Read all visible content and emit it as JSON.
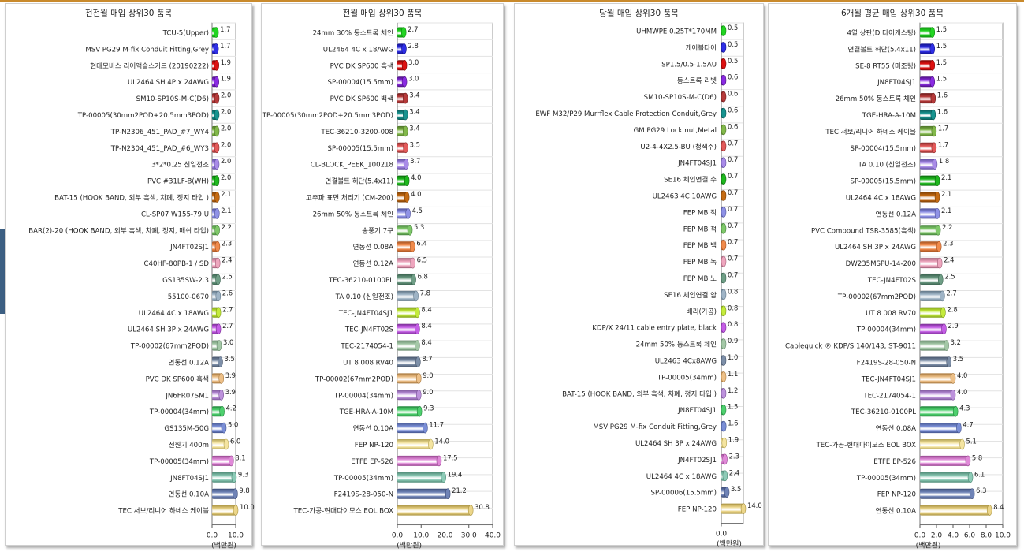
{
  "unit_label": "(백만원)",
  "chart_data": [
    {
      "type": "bar",
      "title": "전전월 매입 상위30 품목",
      "xlabel": "(백만원)",
      "xlim": [
        0,
        10
      ],
      "xticks": [
        "0.0",
        "10.0"
      ],
      "categories": [
        "TCU-5(Upper)",
        "MSV PG29 M-fix Conduit Fitting,Grey",
        "현대모비스 리어액슬스키드 (20190222)",
        "UL2464 SH 4P x 24AWG",
        "SM10-SP10S-M-C(D6)",
        "TP-00005(30mm2POD+20.5mm3POD)",
        "TP-N2306_451_PAD_#7_WY4",
        "TP-N2304_451_PAD_#6_WY3",
        "3*2*0.25 신일전조",
        "PVC #31LF-B(WH)",
        "BAT-15 (HOOK BAND, 외부 흑색, 차폐, 정지 타입 )",
        "CL-SP07 W155-79 U",
        "BAR(2)-20 (HOOK BAND, 외부 흑색, 차폐, 정지, 매쉬 타입)",
        "JN4FT02SJ1",
        "C40HF-80PB-1 / SD",
        "GS135SW-2.3",
        "55100-0670",
        "UL2464 4C x 18AWG",
        "UL2464 SH 3P x 24AWG",
        "TP-00002(67mm2POD)",
        "연동선 0.12A",
        "PVC DK SP600 흑색",
        "JN6FR07SM1",
        "TP-00004(34mm)",
        "GS135M-50G",
        "전원기 400m",
        "TP-00005(34mm)",
        "JN8FT04SJ1",
        "연동선 0.10A",
        "TEC 서보/리니어 하네스 케이블"
      ],
      "values": [
        1.7,
        1.7,
        1.9,
        1.9,
        2.0,
        2.0,
        2.0,
        2.0,
        2.0,
        2.0,
        2.1,
        2.1,
        2.2,
        2.3,
        2.4,
        2.5,
        2.6,
        2.7,
        2.7,
        3.0,
        3.5,
        3.9,
        3.9,
        4.2,
        5.0,
        6.0,
        8.1,
        9.3,
        9.8,
        10.0
      ],
      "value_labels": [
        "1.7",
        "1.7",
        "1.9",
        "1.9",
        "2.0",
        "2.0",
        "2.0",
        "2.0",
        "2.0",
        "2.0",
        "2.1",
        "2.1",
        "2.2",
        "2.3",
        "2.4",
        "2.5",
        "2.6",
        "2.7",
        "2.7",
        "3.0",
        "3.5",
        "3.9",
        "3.9",
        "4.2",
        "5.0",
        "6.0",
        "8.1",
        "9.3",
        "9.8",
        "10.0"
      ]
    },
    {
      "type": "bar",
      "title": "전월 매입 상위30 품목",
      "xlabel": "(백만원)",
      "xlim": [
        0,
        40
      ],
      "xticks": [
        "0.0",
        "10.0",
        "20.0",
        "30.0",
        "40.0"
      ],
      "categories": [
        "24mm 30% 동스트록 체인",
        "UL2464 4C x 18AWG",
        "PVC DK SP600 흑색",
        "SP-00004(15.5mm)",
        "PVC DK SP600 백색",
        "TP-00005(30mm2POD+20.5mm3POD)",
        "TEC-36210-3200-008",
        "SP-00005(15.5mm)",
        "CL-BLOCK_PEEK_100218",
        "연결볼트 허단(5.4x11)",
        "고주파 표면 처리기 (CM-200)",
        "26mm 50% 동스트록 체인",
        "송풍기 7구",
        "연동선 0.08A",
        "연동선 0.12A",
        "TEC-36210-0100PL",
        "TA 0.10 (신일전조)",
        "TEC-JN4FT04SJ1",
        "TEC-JN4FT02S",
        "TEC-2174054-1",
        "UT 8 008 RV40",
        "TP-00002(67mm2POD)",
        "TP-00004(34mm)",
        "TGE-HRA-A-10M",
        "연동선 0.10A",
        "FEP NP-120",
        "ETFE EP-526",
        "TP-00005(34mm)",
        "F2419S-28-050-N",
        "TEC-가공-현대다이모스 EOL BOX"
      ],
      "values": [
        2.7,
        2.8,
        3.0,
        3.0,
        3.4,
        3.4,
        3.4,
        3.5,
        3.7,
        4.0,
        4.0,
        4.5,
        5.3,
        6.4,
        6.5,
        6.8,
        7.8,
        8.4,
        8.4,
        8.4,
        8.7,
        9.0,
        9.0,
        9.3,
        11.7,
        14.0,
        17.5,
        19.4,
        21.2,
        30.8
      ],
      "value_labels": [
        "2.7",
        "2.8",
        "3.0",
        "3.0",
        "3.4",
        "3.4",
        "3.4",
        "3.5",
        "3.7",
        "4.0",
        "4.0",
        "4.5",
        "5.3",
        "6.4",
        "6.5",
        "6.8",
        "7.8",
        "8.4",
        "8.4",
        "8.4",
        "8.7",
        "9.0",
        "9.0",
        "9.3",
        "11.7",
        "14.0",
        "17.5",
        "19.4",
        "21.2",
        "30.8"
      ]
    },
    {
      "type": "bar",
      "title": "당월 매입 상위30 품목",
      "xlabel": "(백만원)",
      "xlim": [
        0,
        14
      ],
      "xticks": [
        "0.0"
      ],
      "categories": [
        "UHMWPE 0.25T*170MM",
        "케이블타이",
        "SP1.5/0.5-1.5AU",
        "동스트록 리벳",
        "SM10-SP10S-M-C(D6)",
        "EWF M32/P29 Murrflex Cable Protection Conduit,Grey",
        "GM PG29 Lock nut,Metal",
        "U2-4-4X2.5-BU (청색주)",
        "JN4FT04SJ1",
        "SE16 체인연결 수",
        "UL2463 4C 10AWG",
        "FEP MB 적",
        "FEP MB 적",
        "FEP MB 백",
        "FEP MB 녹",
        "FEP MB 노",
        "SE16 체인연결 암",
        "배리(가공)",
        "KDP/X 24/11 cable entry plate, black",
        "24mm 50% 동스트록 체인",
        "UL2463 4Cx8AWG",
        "TP-00005(34mm)",
        "BAT-15 (HOOK BAND, 외부 흑색, 차폐, 정지 타입 )",
        "JN8FT04SJ1",
        "MSV PG29 M-fix Conduit Fitting,Grey",
        "UL2464 SH 3P x 24AWG",
        "JN4FT02SJ1",
        "UL2464 4C x 18AWG",
        "SP-00006(15.5mm)",
        "FEP NP-120"
      ],
      "values": [
        0.5,
        0.5,
        0.5,
        0.6,
        0.6,
        0.6,
        0.6,
        0.7,
        0.7,
        0.7,
        0.7,
        0.7,
        0.7,
        0.7,
        0.7,
        0.7,
        0.8,
        0.8,
        0.8,
        0.9,
        1.0,
        1.1,
        1.2,
        1.5,
        1.6,
        1.9,
        2.3,
        2.4,
        3.5,
        14.0
      ],
      "value_labels": [
        "0.5",
        "0.5",
        "0.5",
        "0.6",
        "0.6",
        "0.6",
        "0.6",
        "0.7",
        "0.7",
        "0.7",
        "0.7",
        "0.7",
        "0.7",
        "0.7",
        "0.7",
        "0.7",
        "0.8",
        "0.8",
        "0.8",
        "0.9",
        "1.0",
        "1.1",
        "1.2",
        "1.5",
        "1.6",
        "1.9",
        "2.3",
        "2.4",
        "3.5",
        "14.0"
      ]
    },
    {
      "type": "bar",
      "title": "6개월 평균 매입 상위30 품목",
      "xlabel": "(백만원)",
      "xlim": [
        0,
        10
      ],
      "xticks": [
        "0.0",
        "2.0",
        "4.0",
        "6.0",
        "8.0",
        "10.0"
      ],
      "categories": [
        "4열 상판(D 다이캐스팅)",
        "연결볼트 허단(5.4x11)",
        "SE-8 RT55 (미조링)",
        "JN8FT04SJ1",
        "26mm 50% 동스트록 체인",
        "TGE-HRA-A-10M",
        "TEC 서보/리니어 하네스 케이블",
        "SP-00004(15.5mm)",
        "TA 0.10 (신일전조)",
        "SP-00005(15.5mm)",
        "UL2464 4C x 18AWG",
        "연동선 0.12A",
        "PVC Compound TSR-3585(흑색)",
        "UL2464 SH 3P x 24AWG",
        "DW235MSPU-14-200",
        "TEC-JN4FT02S",
        "TP-00002(67mm2POD)",
        "UT 8 008 RV70",
        "TP-00004(34mm)",
        "Cablequick ® KDP/S 140/143, ST-9011",
        "F2419S-28-050-N",
        "TEC-JN4FT04SJ1",
        "TEC-2174054-1",
        "TEC-36210-0100PL",
        "연동선 0.08A",
        "TEC-가공-현대다이모스 EOL BOX",
        "ETFE EP-526",
        "TP-00005(34mm)",
        "FEP NP-120",
        "연동선 0.10A"
      ],
      "values": [
        1.5,
        1.5,
        1.5,
        1.5,
        1.6,
        1.6,
        1.7,
        1.7,
        1.8,
        2.1,
        2.1,
        2.1,
        2.2,
        2.3,
        2.4,
        2.5,
        2.7,
        2.8,
        2.9,
        3.2,
        3.5,
        4.0,
        4.0,
        4.3,
        4.7,
        5.1,
        5.8,
        6.1,
        6.3,
        8.4
      ],
      "value_labels": [
        "1.5",
        "1.5",
        "1.5",
        "1.5",
        "1.6",
        "1.6",
        "1.7",
        "1.7",
        "1.8",
        "2.1",
        "2.1",
        "2.1",
        "2.2",
        "2.3",
        "2.4",
        "2.5",
        "2.7",
        "2.8",
        "2.9",
        "3.2",
        "3.5",
        "4.0",
        "4.0",
        "4.3",
        "4.7",
        "5.1",
        "5.8",
        "6.1",
        "6.3",
        "8.4"
      ]
    }
  ]
}
